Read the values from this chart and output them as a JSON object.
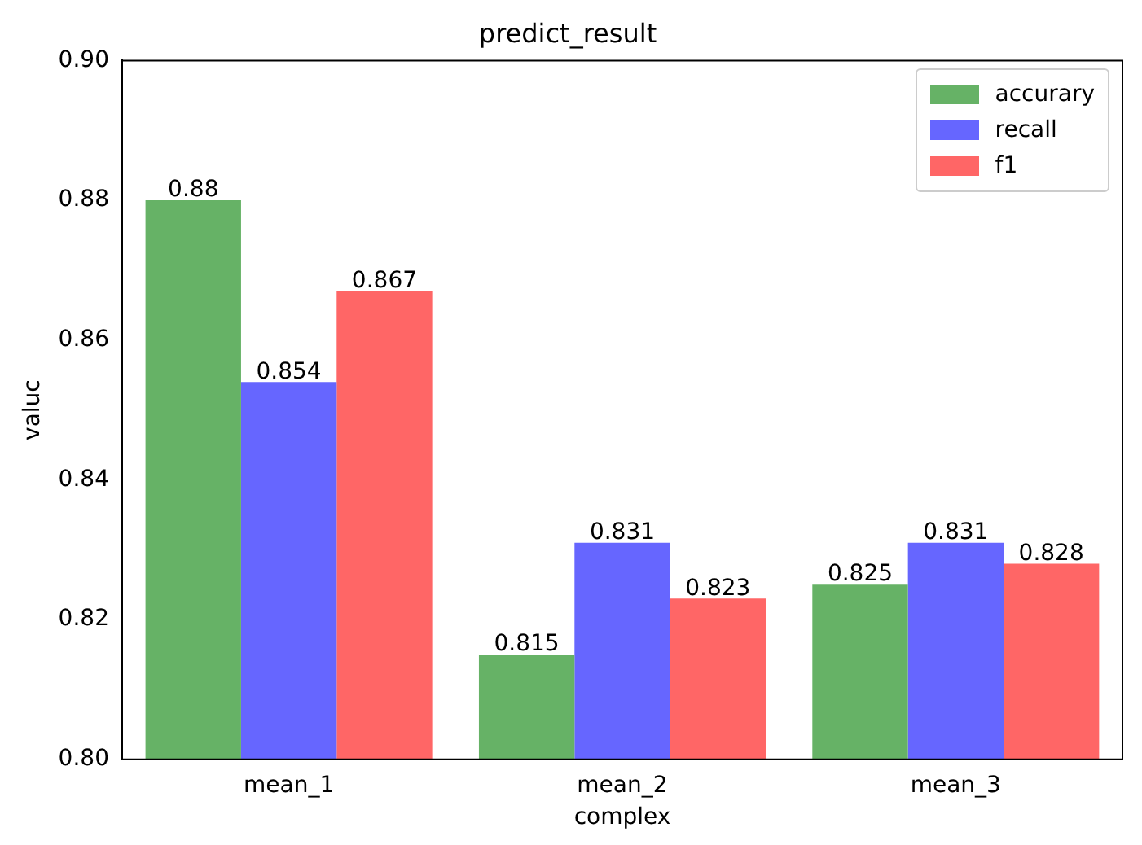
{
  "chart_data": {
    "type": "bar",
    "title": "predict_result",
    "xlabel": "complex",
    "ylabel": "valuc",
    "categories": [
      "mean_1",
      "mean_2",
      "mean_3"
    ],
    "series": [
      {
        "name": "accurary",
        "color": "#66b266",
        "values": [
          0.88,
          0.815,
          0.825
        ]
      },
      {
        "name": "recall",
        "color": "#6666ff",
        "values": [
          0.854,
          0.831,
          0.831
        ]
      },
      {
        "name": "f1",
        "color": "#ff6666",
        "values": [
          0.867,
          0.823,
          0.828
        ]
      }
    ],
    "ylim": [
      0.8,
      0.9
    ],
    "yticks": [
      {
        "value": 0.8,
        "label": "0.80"
      },
      {
        "value": 0.82,
        "label": "0.82"
      },
      {
        "value": 0.84,
        "label": "0.84"
      },
      {
        "value": 0.86,
        "label": "0.86"
      },
      {
        "value": 0.88,
        "label": "0.88"
      },
      {
        "value": 0.9,
        "label": "0.90"
      }
    ],
    "data_labels": true,
    "legend": "top right",
    "grid": false
  }
}
